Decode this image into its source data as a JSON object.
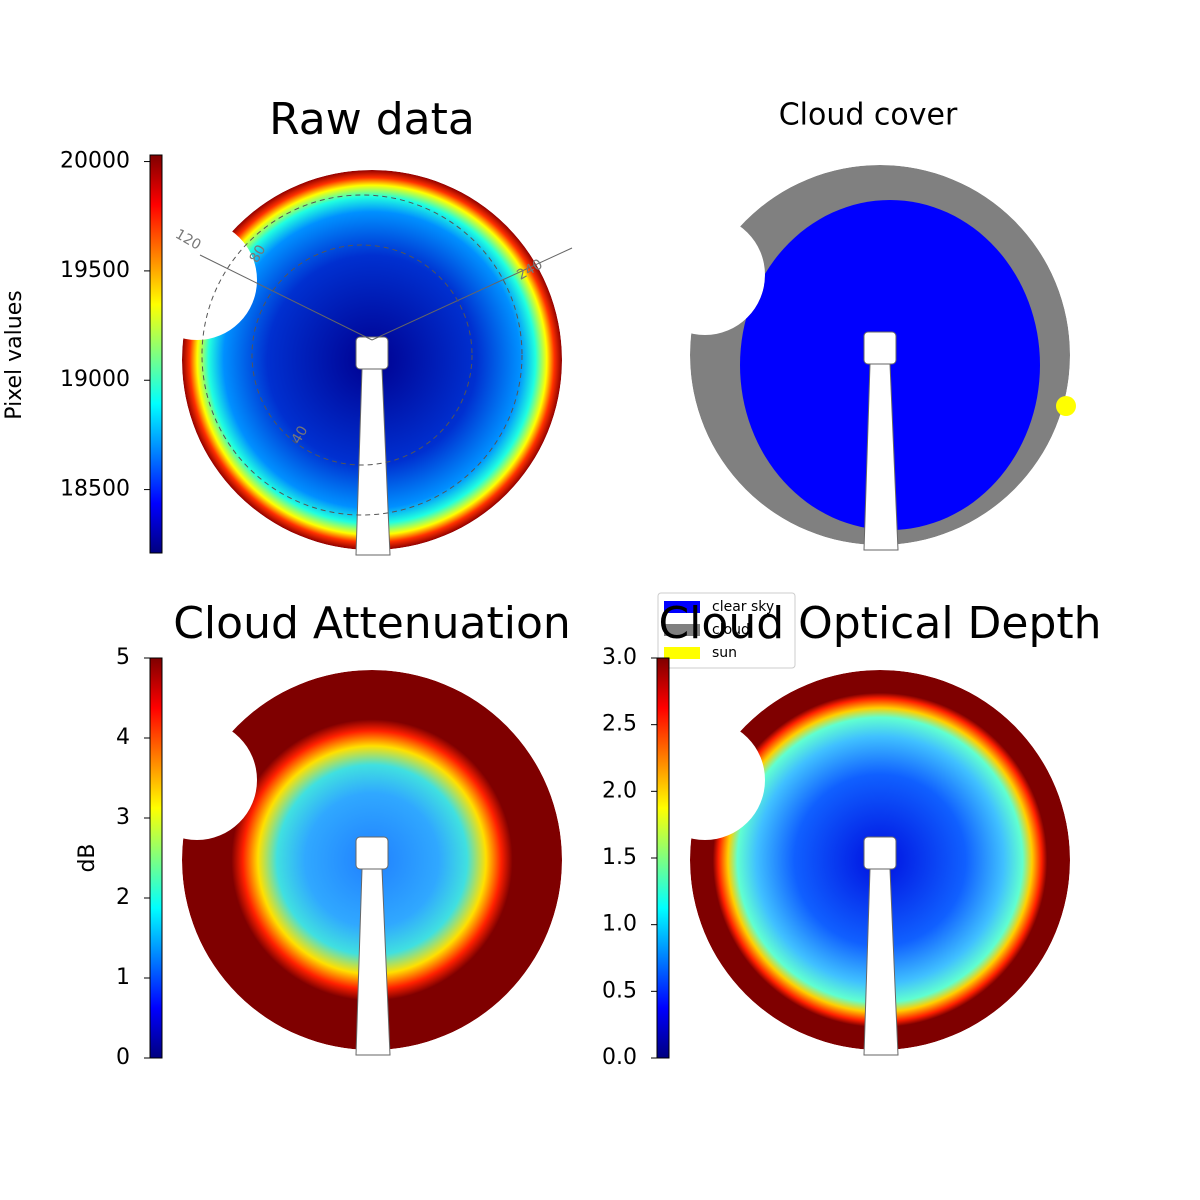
{
  "chart_data": [
    {
      "type": "heatmap",
      "title": "Raw data",
      "colorbar_label": "Pixel values",
      "colorbar_lim": [
        18210,
        20030
      ],
      "colorbar_ticks": [
        18500,
        19000,
        19500,
        20000
      ],
      "annotations": [
        "120",
        "80",
        "240",
        "40"
      ]
    },
    {
      "type": "classification",
      "title": "Cloud cover",
      "series": [
        {
          "name": "clear sky",
          "color": "#0000ff"
        },
        {
          "name": "cloud",
          "color": "#808080"
        },
        {
          "name": "sun",
          "color": "#ffff00"
        }
      ]
    },
    {
      "type": "heatmap",
      "title": "Cloud Attenuation",
      "colorbar_label": "dB",
      "colorbar_lim": [
        0,
        5
      ],
      "colorbar_ticks": [
        0,
        1,
        2,
        3,
        4,
        5
      ]
    },
    {
      "type": "heatmap",
      "title": "Cloud Optical Depth",
      "colorbar_lim": [
        0,
        3.0
      ],
      "colorbar_ticks": [
        {
          "value": 0,
          "label": "0.0"
        },
        0.5,
        {
          "value": 1,
          "label": "1.0"
        },
        1.5,
        {
          "value": 2,
          "label": "2.0"
        },
        2.5,
        {
          "value": 3,
          "label": "3.0"
        }
      ]
    }
  ]
}
